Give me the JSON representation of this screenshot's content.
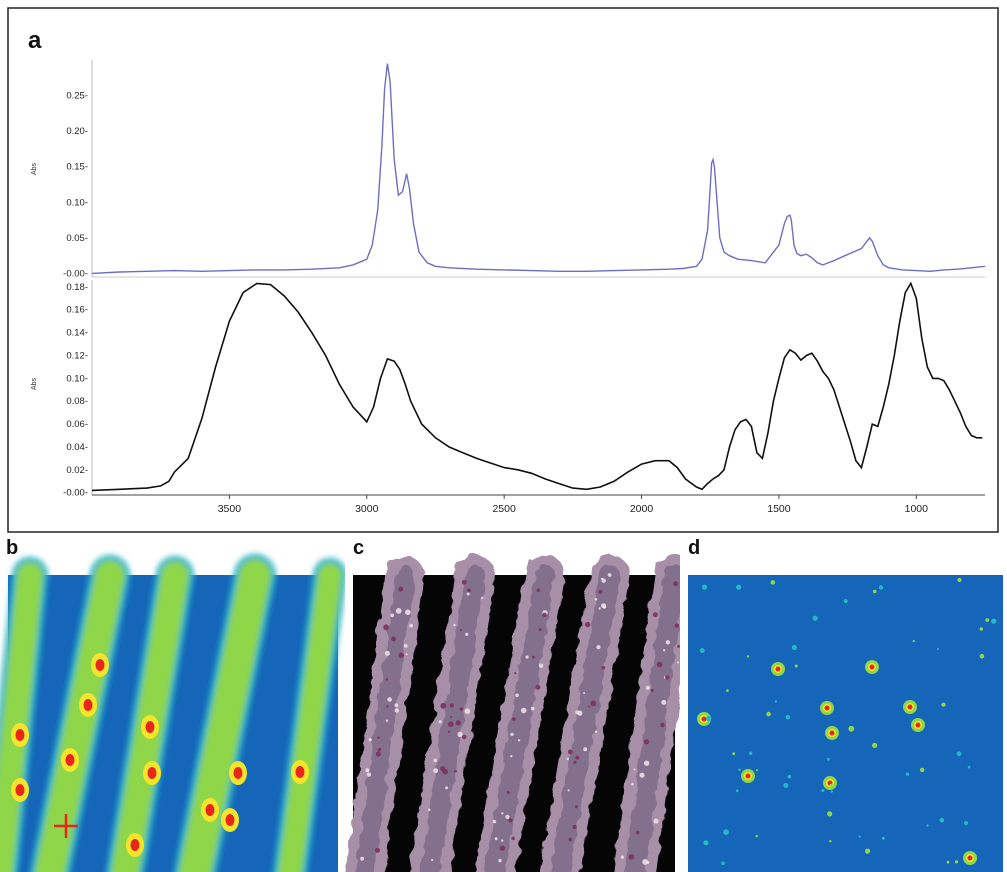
{
  "panels": {
    "a": "a",
    "b": "b",
    "c": "c",
    "d": "d"
  },
  "chart_data": [
    {
      "type": "line",
      "panel": "a",
      "position": "upper",
      "ylabel": "Abs",
      "xlim": [
        4000,
        750
      ],
      "ylim": [
        -0.005,
        0.3
      ],
      "yticks": [
        "0.25-",
        "0.20-",
        "0.15-",
        "0.10-",
        "0.05-",
        "-0.00-"
      ],
      "ytick_values": [
        0.25,
        0.2,
        0.15,
        0.1,
        0.05,
        0.0
      ],
      "series": [
        {
          "color": "#6b6fc4",
          "x": [
            4000,
            3900,
            3800,
            3700,
            3600,
            3500,
            3400,
            3300,
            3200,
            3100,
            3050,
            3000,
            2980,
            2960,
            2945,
            2935,
            2925,
            2915,
            2900,
            2885,
            2870,
            2855,
            2845,
            2830,
            2810,
            2780,
            2750,
            2700,
            2600,
            2500,
            2400,
            2300,
            2200,
            2100,
            2000,
            1900,
            1850,
            1800,
            1780,
            1760,
            1750,
            1745,
            1740,
            1735,
            1725,
            1715,
            1700,
            1680,
            1650,
            1600,
            1550,
            1500,
            1480,
            1470,
            1460,
            1455,
            1445,
            1435,
            1420,
            1400,
            1380,
            1360,
            1340,
            1300,
            1260,
            1230,
            1200,
            1180,
            1170,
            1160,
            1140,
            1120,
            1100,
            1050,
            1000,
            950,
            900,
            850,
            800,
            750
          ],
          "y": [
            0.0,
            0.002,
            0.003,
            0.004,
            0.003,
            0.004,
            0.005,
            0.005,
            0.006,
            0.008,
            0.012,
            0.02,
            0.04,
            0.09,
            0.18,
            0.26,
            0.295,
            0.27,
            0.16,
            0.11,
            0.115,
            0.14,
            0.12,
            0.07,
            0.03,
            0.015,
            0.01,
            0.008,
            0.006,
            0.005,
            0.004,
            0.003,
            0.003,
            0.004,
            0.005,
            0.006,
            0.007,
            0.01,
            0.02,
            0.06,
            0.12,
            0.155,
            0.16,
            0.15,
            0.1,
            0.05,
            0.03,
            0.025,
            0.02,
            0.018,
            0.015,
            0.04,
            0.07,
            0.08,
            0.082,
            0.075,
            0.04,
            0.028,
            0.025,
            0.027,
            0.022,
            0.015,
            0.012,
            0.018,
            0.025,
            0.03,
            0.035,
            0.045,
            0.05,
            0.045,
            0.025,
            0.012,
            0.008,
            0.005,
            0.004,
            0.003,
            0.005,
            0.006,
            0.008,
            0.01
          ]
        }
      ]
    },
    {
      "type": "line",
      "panel": "a",
      "position": "lower",
      "ylabel": "Abs",
      "xlim": [
        4000,
        750
      ],
      "ylim": [
        -0.002,
        0.186
      ],
      "yticks": [
        "0.18-",
        "0.16-",
        "0.14-",
        "0.12-",
        "0.10-",
        "0.08-",
        "0.06-",
        "0.04-",
        "0.02-",
        "-0.00-"
      ],
      "ytick_values": [
        0.18,
        0.16,
        0.14,
        0.12,
        0.1,
        0.08,
        0.06,
        0.04,
        0.02,
        0.0
      ],
      "xticks": [
        "3500",
        "3000",
        "2500",
        "2000",
        "1500",
        "1000"
      ],
      "xtick_values": [
        3500,
        3000,
        2500,
        2000,
        1500,
        1000
      ],
      "series": [
        {
          "color": "#111111",
          "x": [
            4000,
            3900,
            3800,
            3750,
            3720,
            3700,
            3650,
            3600,
            3550,
            3500,
            3450,
            3400,
            3350,
            3300,
            3250,
            3200,
            3150,
            3100,
            3050,
            3000,
            2975,
            2950,
            2925,
            2900,
            2880,
            2860,
            2840,
            2800,
            2750,
            2700,
            2650,
            2600,
            2550,
            2500,
            2450,
            2400,
            2350,
            2300,
            2250,
            2200,
            2150,
            2100,
            2050,
            2000,
            1950,
            1900,
            1870,
            1840,
            1800,
            1780,
            1760,
            1740,
            1720,
            1700,
            1680,
            1660,
            1640,
            1620,
            1600,
            1580,
            1560,
            1540,
            1520,
            1500,
            1480,
            1460,
            1440,
            1420,
            1400,
            1380,
            1360,
            1340,
            1320,
            1300,
            1280,
            1260,
            1240,
            1220,
            1200,
            1180,
            1160,
            1140,
            1120,
            1100,
            1080,
            1060,
            1040,
            1020,
            1000,
            980,
            960,
            940,
            920,
            900,
            880,
            860,
            840,
            820,
            800,
            780,
            760
          ],
          "y": [
            0.002,
            0.003,
            0.004,
            0.006,
            0.01,
            0.018,
            0.03,
            0.065,
            0.11,
            0.15,
            0.175,
            0.183,
            0.182,
            0.172,
            0.158,
            0.14,
            0.12,
            0.095,
            0.075,
            0.062,
            0.075,
            0.1,
            0.117,
            0.115,
            0.108,
            0.095,
            0.08,
            0.06,
            0.048,
            0.04,
            0.035,
            0.03,
            0.026,
            0.022,
            0.02,
            0.017,
            0.012,
            0.008,
            0.004,
            0.003,
            0.005,
            0.01,
            0.018,
            0.025,
            0.028,
            0.028,
            0.022,
            0.012,
            0.005,
            0.003,
            0.008,
            0.012,
            0.015,
            0.02,
            0.04,
            0.055,
            0.062,
            0.064,
            0.058,
            0.035,
            0.03,
            0.052,
            0.08,
            0.1,
            0.118,
            0.125,
            0.122,
            0.116,
            0.12,
            0.122,
            0.115,
            0.106,
            0.1,
            0.09,
            0.075,
            0.06,
            0.045,
            0.028,
            0.022,
            0.04,
            0.06,
            0.058,
            0.075,
            0.095,
            0.12,
            0.15,
            0.175,
            0.183,
            0.17,
            0.135,
            0.11,
            0.1,
            0.1,
            0.098,
            0.09,
            0.08,
            0.07,
            0.058,
            0.05,
            0.048,
            0.048
          ]
        }
      ]
    },
    {
      "type": "heatmap",
      "panel": "b",
      "colormap": [
        "#1565b8",
        "#29b6c9",
        "#8fd64a",
        "#f2e52b",
        "#e8261c"
      ]
    },
    {
      "type": "heatmap",
      "panel": "c",
      "colormap": [
        "#050505",
        "#6c5a7c",
        "#a88fa8",
        "#d8c8d4"
      ]
    },
    {
      "type": "heatmap",
      "panel": "d",
      "colormap": [
        "#1565b8",
        "#29b6c9",
        "#8fd64a",
        "#f2e52b",
        "#e8261c"
      ]
    }
  ]
}
